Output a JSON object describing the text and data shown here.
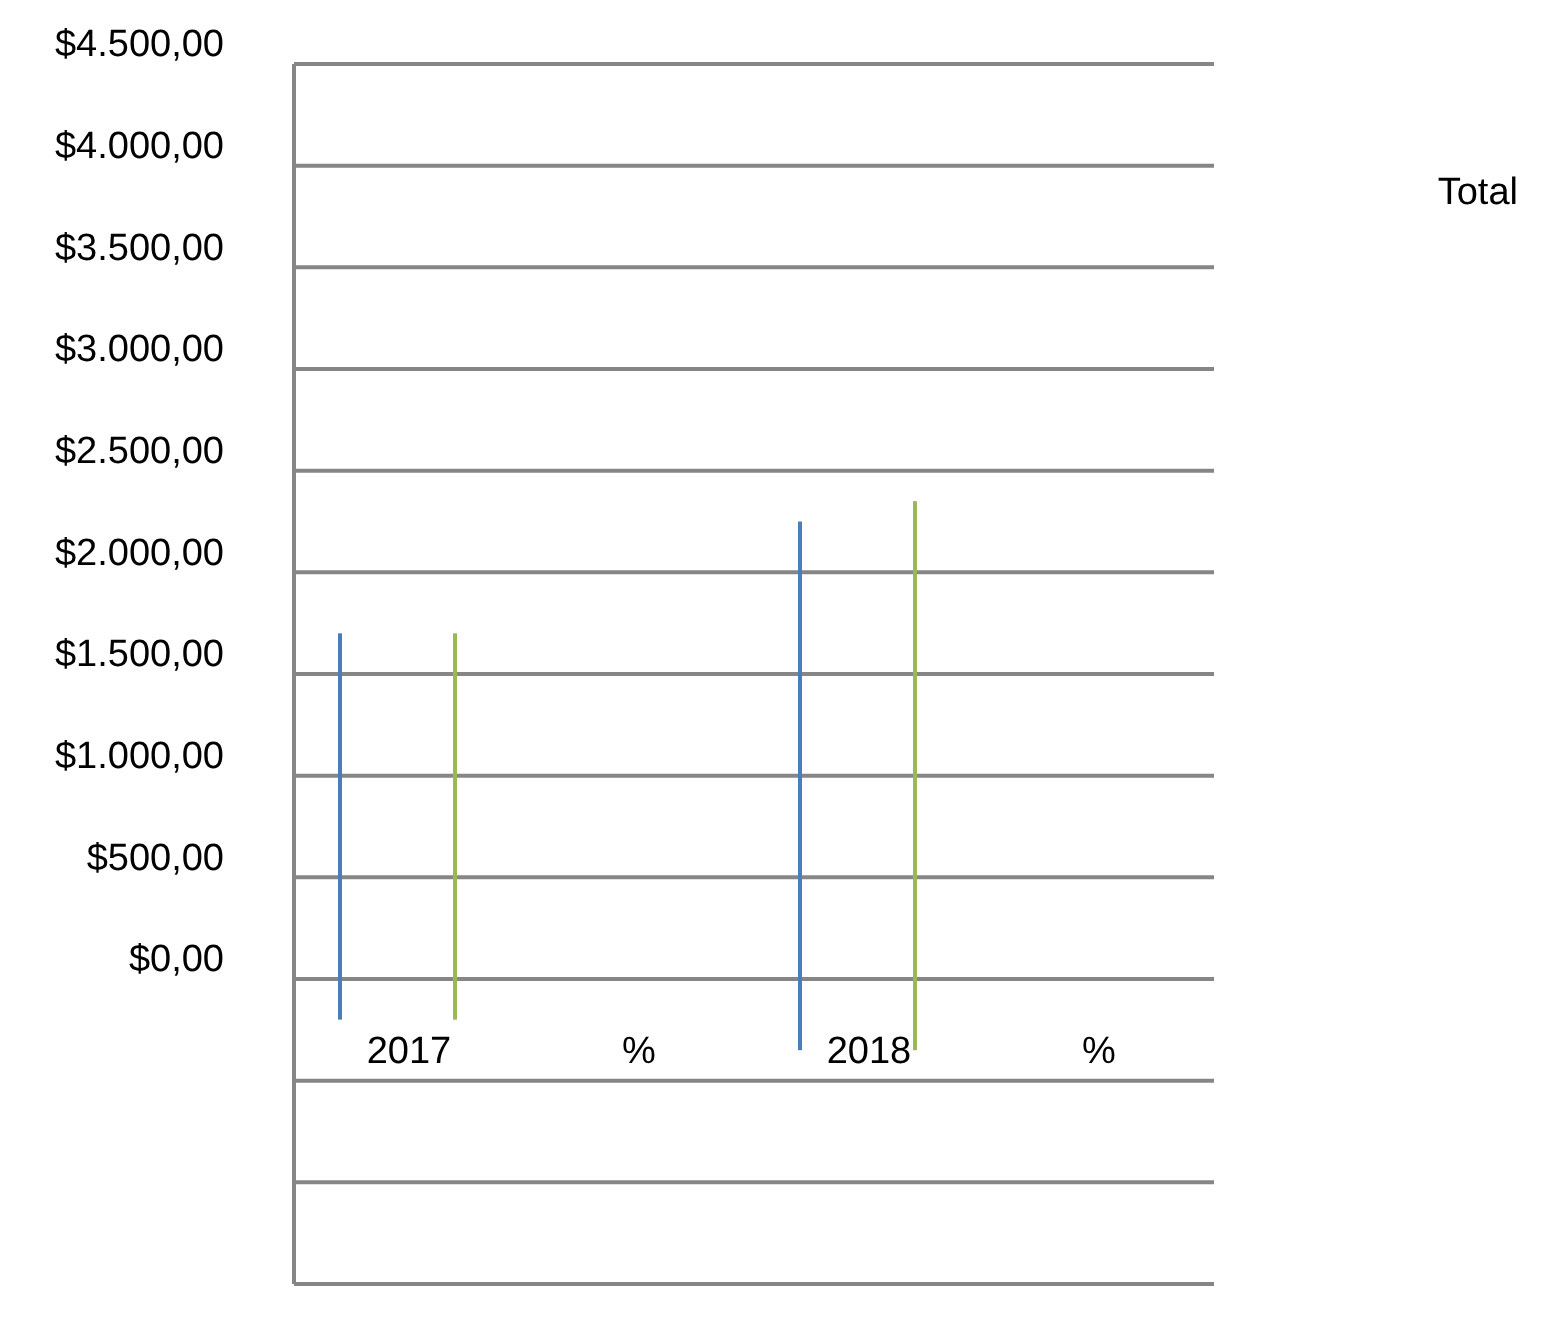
{
  "chart_data": {
    "type": "bar",
    "categories": [
      "2017",
      "%",
      "2018",
      "%"
    ],
    "series": [
      {
        "color": "#4a7ebb",
        "values": [
          1900,
          null,
          2600,
          null
        ],
        "base": [
          -200,
          null,
          -350,
          null
        ]
      },
      {
        "color": "#98b954",
        "values": [
          1900,
          null,
          2700,
          null
        ],
        "base": [
          -200,
          null,
          -350,
          null
        ]
      }
    ],
    "ylim": [
      -1500,
      4500
    ],
    "yticks": [
      {
        "value": -1500,
        "label": null
      },
      {
        "value": -1000,
        "label": null
      },
      {
        "value": -500,
        "label": null
      },
      {
        "value": 0,
        "label": "$0,00"
      },
      {
        "value": 500,
        "label": "$500,00"
      },
      {
        "value": 1000,
        "label": "$1.000,00"
      },
      {
        "value": 1500,
        "label": "$1.500,00"
      },
      {
        "value": 2000,
        "label": "$2.000,00"
      },
      {
        "value": 2500,
        "label": "$2.500,00"
      },
      {
        "value": 3000,
        "label": "$3.000,00"
      },
      {
        "value": 3500,
        "label": "$3.500,00"
      },
      {
        "value": 4000,
        "label": "$4.000,00"
      },
      {
        "value": 4500,
        "label": "$4.500,00"
      }
    ],
    "grid": "y",
    "annotations": [
      "Total"
    ]
  }
}
